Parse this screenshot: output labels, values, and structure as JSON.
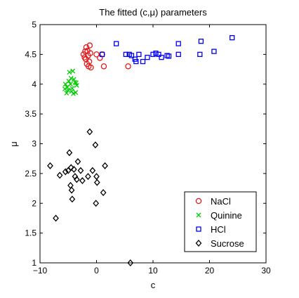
{
  "chart_data": {
    "type": "scatter",
    "title": "The fitted (c,μ) parameters",
    "xlabel": "c",
    "ylabel": "μ",
    "xlim": [
      -10,
      30
    ],
    "ylim": [
      1,
      5
    ],
    "xticks": [
      -10,
      0,
      10,
      20,
      30
    ],
    "yticks": [
      1,
      1.5,
      2,
      2.5,
      3,
      3.5,
      4,
      4.5,
      5
    ],
    "xtick_labels": [
      "−10",
      "0",
      "10",
      "20",
      "30"
    ],
    "ytick_labels": [
      "1",
      "1.5",
      "2",
      "2.5",
      "3",
      "3.5",
      "4",
      "4.5",
      "5"
    ],
    "grid": false,
    "legend_position": "bottom-right",
    "series": [
      {
        "name": "NaCl",
        "marker": "circle",
        "color": "#e31a1c",
        "points": [
          [
            -1.8,
            4.62
          ],
          [
            -1.6,
            4.56
          ],
          [
            -1.2,
            4.65
          ],
          [
            -1.5,
            4.48
          ],
          [
            -2.0,
            4.55
          ],
          [
            -2.3,
            4.5
          ],
          [
            -1.9,
            4.42
          ],
          [
            -1.3,
            4.38
          ],
          [
            -1.7,
            4.34
          ],
          [
            -1.4,
            4.3
          ],
          [
            -1.0,
            4.28
          ],
          [
            -2.1,
            4.45
          ],
          [
            -1.1,
            4.52
          ],
          [
            0.0,
            4.5
          ],
          [
            0.6,
            4.44
          ],
          [
            1.0,
            4.5
          ],
          [
            1.3,
            4.3
          ],
          [
            5.6,
            4.3
          ]
        ]
      },
      {
        "name": "Quinine",
        "marker": "x",
        "color": "#00cc00",
        "points": [
          [
            -4.8,
            4.2
          ],
          [
            -4.2,
            4.22
          ],
          [
            -4.5,
            4.1
          ],
          [
            -4.9,
            4.05
          ],
          [
            -4.0,
            4.08
          ],
          [
            -3.8,
            4.03
          ],
          [
            -5.5,
            4.0
          ],
          [
            -4.6,
            4.0
          ],
          [
            -3.5,
            3.98
          ],
          [
            -5.2,
            3.95
          ],
          [
            -4.3,
            3.93
          ],
          [
            -5.0,
            3.9
          ],
          [
            -4.4,
            3.88
          ],
          [
            -3.7,
            3.86
          ],
          [
            -5.3,
            3.85
          ],
          [
            -4.1,
            3.84
          ],
          [
            -3.6,
            4.02
          ],
          [
            -5.6,
            3.92
          ]
        ]
      },
      {
        "name": "HCl",
        "marker": "square",
        "color": "#0000ee",
        "points": [
          [
            1.0,
            4.5
          ],
          [
            3.5,
            4.68
          ],
          [
            5.2,
            4.5
          ],
          [
            5.8,
            4.5
          ],
          [
            6.2,
            4.48
          ],
          [
            6.8,
            4.42
          ],
          [
            7.5,
            4.5
          ],
          [
            7.0,
            4.38
          ],
          [
            8.2,
            4.38
          ],
          [
            9.0,
            4.45
          ],
          [
            10.0,
            4.5
          ],
          [
            10.5,
            4.52
          ],
          [
            11.0,
            4.5
          ],
          [
            11.5,
            4.45
          ],
          [
            12.5,
            4.48
          ],
          [
            14.5,
            4.5
          ],
          [
            14.5,
            4.68
          ],
          [
            18.5,
            4.72
          ],
          [
            18.3,
            4.5
          ],
          [
            20.8,
            4.55
          ],
          [
            24.0,
            4.78
          ],
          [
            12.8,
            4.47
          ]
        ]
      },
      {
        "name": "Sucrose",
        "marker": "diamond",
        "color": "#000000",
        "points": [
          [
            -8.2,
            2.63
          ],
          [
            -7.2,
            1.75
          ],
          [
            -6.5,
            2.47
          ],
          [
            -5.5,
            2.53
          ],
          [
            -5.0,
            2.55
          ],
          [
            -4.8,
            2.85
          ],
          [
            -4.5,
            2.6
          ],
          [
            -4.6,
            2.3
          ],
          [
            -4.4,
            2.22
          ],
          [
            -4.3,
            2.07
          ],
          [
            -4.0,
            2.57
          ],
          [
            -3.8,
            2.45
          ],
          [
            -3.5,
            2.4
          ],
          [
            -3.3,
            2.7
          ],
          [
            -2.8,
            2.55
          ],
          [
            -2.5,
            2.38
          ],
          [
            -1.5,
            2.45
          ],
          [
            -1.2,
            3.2
          ],
          [
            -0.7,
            2.55
          ],
          [
            -0.2,
            2.98
          ],
          [
            0.0,
            2.45
          ],
          [
            0.1,
            2.35
          ],
          [
            -0.1,
            2.0
          ],
          [
            1.2,
            2.18
          ],
          [
            1.5,
            2.63
          ],
          [
            6.0,
            1.0
          ]
        ]
      }
    ]
  }
}
